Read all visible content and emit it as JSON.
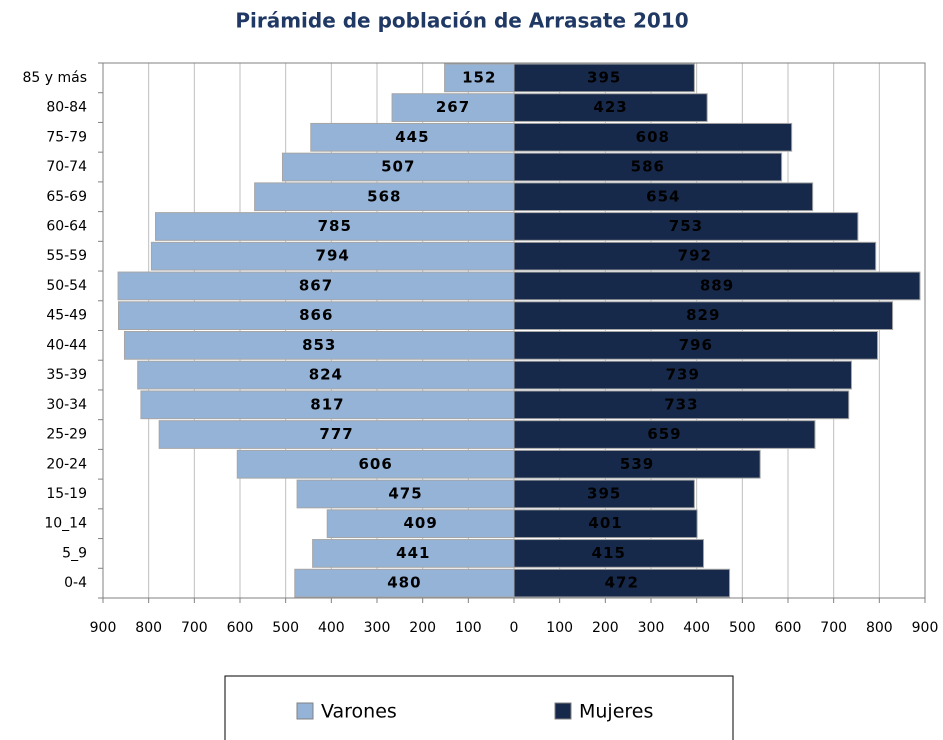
{
  "chart_data": {
    "type": "pyramid",
    "title": "Pirámide de población de Arrasate 2010",
    "categories": [
      "85 y más",
      "80-84",
      "75-79",
      "70-74",
      "65-69",
      "60-64",
      "55-59",
      "50-54",
      "45-49",
      "40-44",
      "35-39",
      "30-34",
      "25-29",
      "20-24",
      "15-19",
      "10_14",
      "5_9",
      "0-4"
    ],
    "series": [
      {
        "name": "Varones",
        "color": "#95b3d7",
        "label_color": "#000000",
        "values": [
          152,
          267,
          445,
          507,
          568,
          785,
          794,
          867,
          866,
          853,
          824,
          817,
          777,
          606,
          475,
          409,
          441,
          480
        ]
      },
      {
        "name": "Mujeres",
        "color": "#17294a",
        "label_color": "#ffffff",
        "values": [
          395,
          423,
          608,
          586,
          654,
          753,
          792,
          889,
          829,
          796,
          739,
          733,
          659,
          539,
          395,
          401,
          415,
          472
        ]
      }
    ],
    "xlim": [
      -900,
      900
    ],
    "xticks": [
      {
        "value": -900,
        "label": "900"
      },
      {
        "value": -800,
        "label": "800"
      },
      {
        "value": -700,
        "label": "700"
      },
      {
        "value": -600,
        "label": "600"
      },
      {
        "value": -500,
        "label": "500"
      },
      {
        "value": -400,
        "label": "400"
      },
      {
        "value": -300,
        "label": "300"
      },
      {
        "value": -200,
        "label": "200"
      },
      {
        "value": -100,
        "label": "100"
      },
      0,
      100,
      200,
      300,
      400,
      500,
      600,
      700,
      800,
      900
    ],
    "grid": true
  }
}
